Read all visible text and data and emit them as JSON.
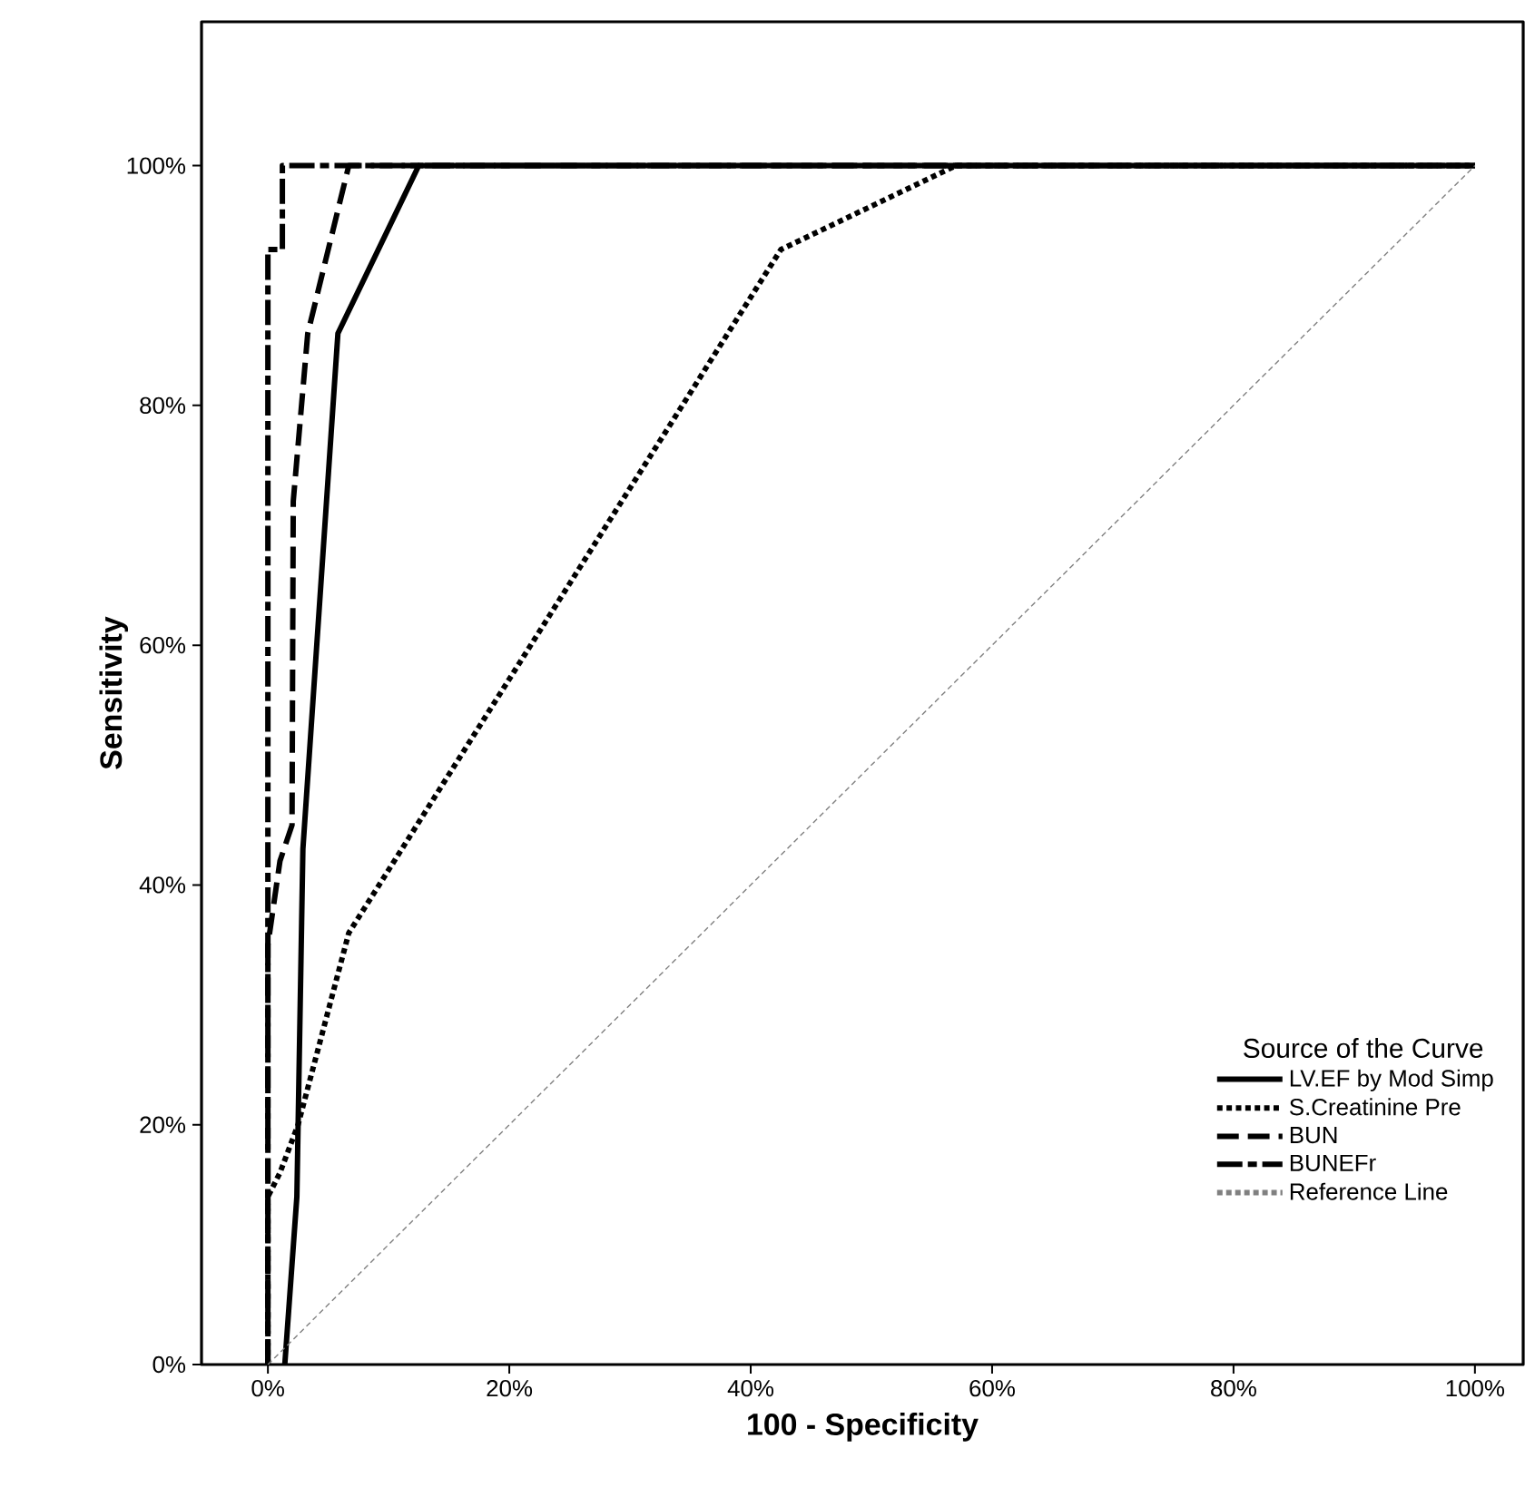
{
  "chart_data": {
    "type": "line",
    "xlabel": "100 - Specificity",
    "ylabel": "Sensitivity",
    "legend_title": "Source of the Curve",
    "xlim": [
      -5.5,
      104
    ],
    "ylim": [
      0,
      112
    ],
    "xticks": [
      {
        "value": 0,
        "label": "0%"
      },
      {
        "value": 20,
        "label": "20%"
      },
      {
        "value": 40,
        "label": "40%"
      },
      {
        "value": 60,
        "label": "60%"
      },
      {
        "value": 80,
        "label": "80%"
      },
      {
        "value": 100,
        "label": "100%"
      }
    ],
    "yticks": [
      {
        "value": 0,
        "label": "0%"
      },
      {
        "value": 20,
        "label": "20%"
      },
      {
        "value": 40,
        "label": "40%"
      },
      {
        "value": 60,
        "label": "60%"
      },
      {
        "value": 80,
        "label": "80%"
      },
      {
        "value": 100,
        "label": "100%"
      }
    ],
    "grid": false,
    "legend": "bottom right",
    "series": [
      {
        "name": "LV.EF by Mod Simp",
        "color": "#000000",
        "line_style": "solid",
        "x": [
          1.4,
          2.4,
          2.9,
          5.8,
          12.5,
          100
        ],
        "values": [
          0,
          14,
          43,
          86,
          100,
          100
        ]
      },
      {
        "name": "S.Creatinine Pre",
        "color": "#000000",
        "line_style": "dotted",
        "x": [
          0,
          0,
          1,
          2.5,
          6.7,
          42.5,
          57,
          100
        ],
        "values": [
          0,
          14,
          16,
          20,
          36,
          93,
          100,
          100
        ]
      },
      {
        "name": "BUN",
        "color": "#000000",
        "line_style": "dashed",
        "x": [
          0,
          0,
          1,
          2,
          2.1,
          3.3,
          6.7,
          100
        ],
        "values": [
          0,
          35,
          42,
          45,
          72,
          86,
          100,
          100
        ]
      },
      {
        "name": "BUNEFr",
        "color": "#000000",
        "line_style": "dashdot",
        "x": [
          0,
          0,
          1.2,
          1.2,
          100
        ],
        "values": [
          0,
          93,
          93,
          100,
          100
        ]
      },
      {
        "name": "Reference Line",
        "color": "#808080",
        "line_style": "dashed",
        "x": [
          0,
          100
        ],
        "values": [
          0,
          100
        ]
      }
    ]
  }
}
